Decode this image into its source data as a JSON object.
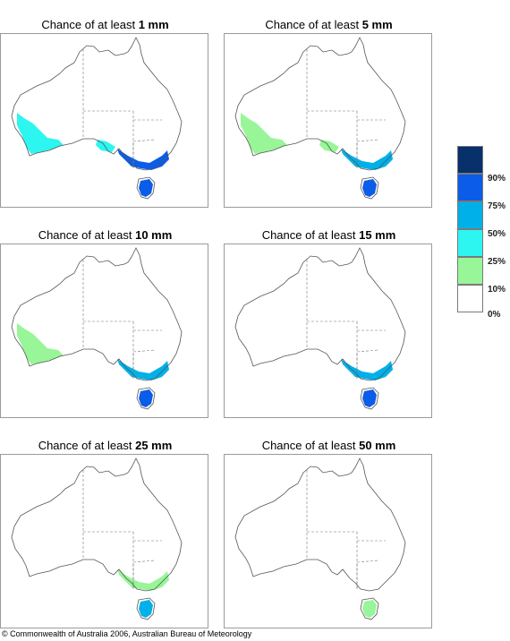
{
  "panels": [
    {
      "prefix": "Chance of at least ",
      "amount": "1 mm",
      "regions": {
        "wa": "light",
        "sa": "light",
        "vic": "dark",
        "tas": "dark"
      }
    },
    {
      "prefix": "Chance of at least ",
      "amount": "5 mm",
      "regions": {
        "wa": "lowest",
        "sa": "lowest",
        "vic": "mid",
        "tas": "dark"
      }
    },
    {
      "prefix": "Chance of at least ",
      "amount": "10 mm",
      "regions": {
        "wa": "lowest",
        "sa": "none",
        "vic": "mid",
        "tas": "dark"
      }
    },
    {
      "prefix": "Chance of at least ",
      "amount": "15 mm",
      "regions": {
        "wa": "none",
        "sa": "none",
        "vic": "mid",
        "tas": "dark"
      }
    },
    {
      "prefix": "Chance of at least ",
      "amount": "25 mm",
      "regions": {
        "wa": "none",
        "sa": "none",
        "vic": "lowest",
        "tas": "mid"
      }
    },
    {
      "prefix": "Chance of at least ",
      "amount": "50 mm",
      "regions": {
        "wa": "none",
        "sa": "none",
        "vic": "none",
        "tas": "lowest"
      }
    }
  ],
  "legend": {
    "swatches": [
      "#08306b",
      "#0b5ce8",
      "#00b0e8",
      "#2df5f0",
      "#98f598",
      "#ffffff"
    ],
    "ticks": [
      "90%",
      "75%",
      "50%",
      "25%",
      "10%",
      "0%"
    ]
  },
  "colors": {
    "none": "",
    "lowest": "#98f598",
    "light": "#2df5f0",
    "mid": "#00b0e8",
    "dark": "#0b5ce8",
    "darkest": "#08306b"
  },
  "copyright": "© Commonwealth of Australia 2006, Australian Bureau of Meteorology"
}
